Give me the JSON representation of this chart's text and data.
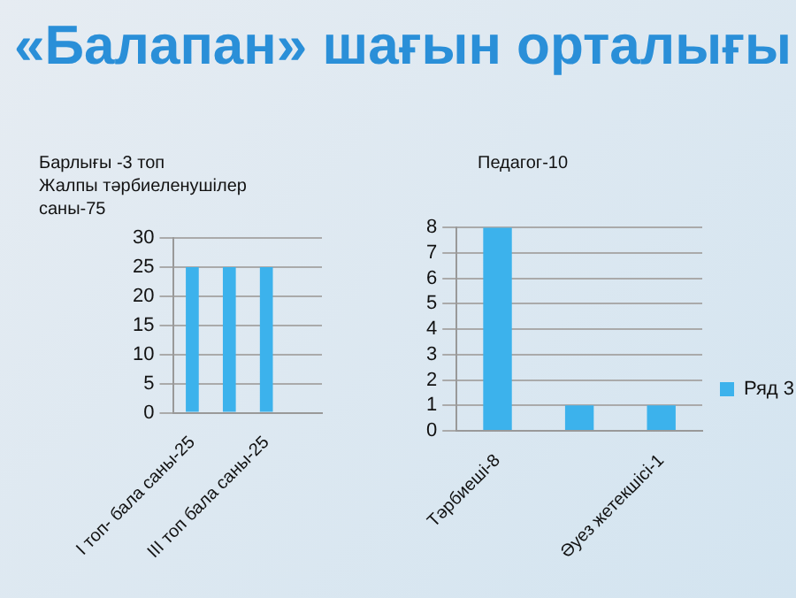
{
  "chart_data": [
    {
      "type": "other",
      "title": "«Балапан» шағын орталығы"
    },
    {
      "type": "bar",
      "title": "Барлығы -3 топ\nЖалпы тәрбиеленушілер\nсаны-75",
      "categories": [
        "I топ- бала саны-25",
        null,
        "III топ бала саны-25",
        null
      ],
      "series": [
        {
          "color": "#3cb2ec",
          "values": [
            25,
            25,
            25,
            null
          ]
        }
      ],
      "ylim": [
        0,
        30
      ],
      "yticks": [
        0,
        5,
        10,
        15,
        20,
        25,
        30
      ],
      "grid": "y",
      "legend": false
    },
    {
      "type": "bar",
      "title": "Педагог-10",
      "categories": [
        "Тәрбиеші-8",
        null,
        "Әуез жетекшісі-1"
      ],
      "series": [
        {
          "name": "Ряд 3",
          "color": "#3cb2ec",
          "values": [
            8,
            1,
            1
          ]
        }
      ],
      "ylim": [
        0,
        8
      ],
      "yticks": [
        0,
        1,
        2,
        3,
        4,
        5,
        6,
        7,
        8
      ],
      "grid": "y",
      "legend": "right"
    }
  ]
}
